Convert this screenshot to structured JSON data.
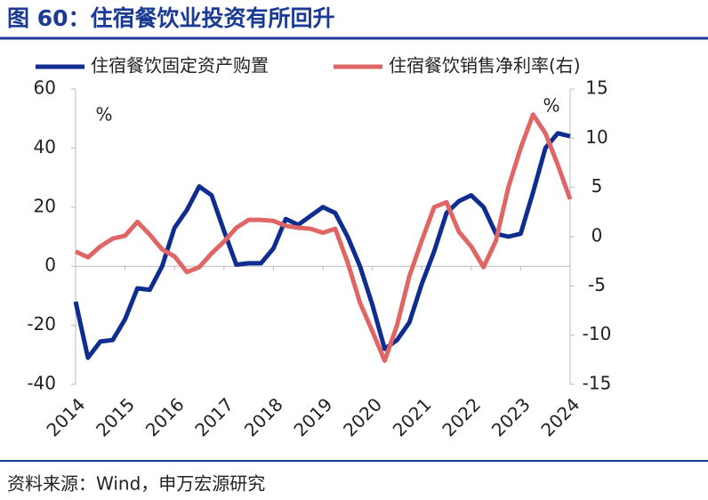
{
  "chart_data": {
    "type": "line",
    "title": "图 60：住宿餐饮业投资有所回升",
    "source": "资料来源：Wind，申万宏源研究",
    "annotations": {
      "left_unit": "%",
      "right_unit": "%"
    },
    "x": [
      2014,
      2014.25,
      2014.5,
      2014.75,
      2015,
      2015.25,
      2015.5,
      2015.75,
      2016,
      2016.25,
      2016.5,
      2016.75,
      2017,
      2017.25,
      2017.5,
      2017.75,
      2018,
      2018.25,
      2018.5,
      2018.75,
      2019,
      2019.25,
      2019.5,
      2019.75,
      2020,
      2020.25,
      2020.5,
      2020.75,
      2021,
      2021.25,
      2021.5,
      2021.75,
      2022,
      2022.25,
      2022.5,
      2022.75,
      2023,
      2023.25,
      2023.5,
      2023.75,
      2024
    ],
    "series": [
      {
        "name": "住宿餐饮固定资产购置",
        "color": "#0f2d8f",
        "values": [
          -12,
          -31,
          -25.5,
          -25,
          -18,
          -7.5,
          -8,
          0,
          13,
          19,
          27,
          24,
          12,
          0.5,
          1,
          1,
          6,
          16,
          14,
          17,
          20,
          18,
          10,
          0,
          -13,
          -28,
          -25,
          -19,
          -6,
          5,
          18,
          22,
          24,
          20,
          11,
          10,
          11,
          25,
          40,
          45,
          44
        ]
      },
      {
        "name": "住宿餐饮销售净利率(右)",
        "color": "#e06666",
        "axis": "y2",
        "values": [
          -1.5,
          -2.1,
          -1,
          -0.2,
          0.1,
          1.5,
          0.2,
          -1.3,
          -2,
          -3.6,
          -3.1,
          -1.7,
          -0.5,
          0.9,
          1.7,
          1.7,
          1.6,
          1.1,
          0.9,
          0.8,
          0.4,
          0.8,
          -2.6,
          -6.7,
          -9.6,
          -12.6,
          -9,
          -4,
          -0.4,
          3,
          3.5,
          0.5,
          -1,
          -3.1,
          -0.4,
          5,
          9,
          12.4,
          10.5,
          7.3,
          3.8
        ]
      }
    ],
    "xlim": [
      2014,
      2024
    ],
    "xticks": [
      2014,
      2015,
      2016,
      2017,
      2018,
      2019,
      2020,
      2021,
      2022,
      2023,
      2024
    ],
    "ylim": [
      -40,
      60
    ],
    "yticks": [
      -40,
      -20,
      0,
      20,
      40,
      60
    ],
    "y2lim": [
      -15,
      15
    ],
    "y2ticks": [
      -15,
      -10,
      -5,
      0,
      5,
      10,
      15
    ]
  }
}
